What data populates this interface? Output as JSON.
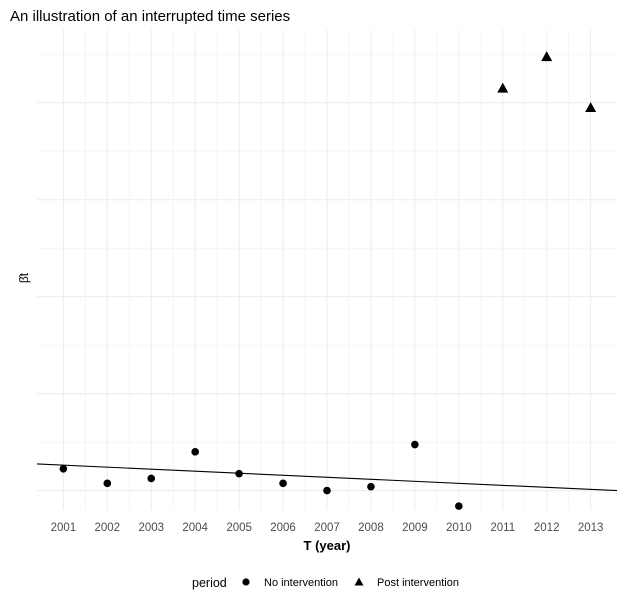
{
  "chart_data": {
    "type": "scatter",
    "title": "An illustration of an interrupted time series",
    "xlabel": "T (year)",
    "ylabel": "β̂t",
    "x_ticks": [
      2001,
      2002,
      2003,
      2004,
      2005,
      2006,
      2007,
      2008,
      2009,
      2010,
      2011,
      2012,
      2013
    ],
    "xlim": [
      2000.4,
      2013.6
    ],
    "ylim": [
      0.1,
      10
    ],
    "y_tick_labels_shown": false,
    "grid": true,
    "legend": {
      "title": "period",
      "position": "bottom",
      "entries": [
        {
          "label": "No intervention",
          "shape": "circle"
        },
        {
          "label": "Post intervention",
          "shape": "triangle"
        }
      ]
    },
    "series": [
      {
        "name": "No intervention",
        "shape": "circle",
        "color": "#000000",
        "points": [
          {
            "x": 2001,
            "y": 0.95
          },
          {
            "x": 2002,
            "y": 0.65
          },
          {
            "x": 2003,
            "y": 0.75
          },
          {
            "x": 2004,
            "y": 1.3
          },
          {
            "x": 2005,
            "y": 0.85
          },
          {
            "x": 2006,
            "y": 0.65
          },
          {
            "x": 2007,
            "y": 0.5
          },
          {
            "x": 2008,
            "y": 0.58
          },
          {
            "x": 2009,
            "y": 1.45
          },
          {
            "x": 2010,
            "y": 0.18
          }
        ]
      },
      {
        "name": "Post intervention",
        "shape": "triangle",
        "color": "#000000",
        "points": [
          {
            "x": 2011,
            "y": 8.8
          },
          {
            "x": 2012,
            "y": 9.45
          },
          {
            "x": 2013,
            "y": 8.4
          }
        ]
      }
    ],
    "trend_line": {
      "x": [
        2000.4,
        2013.6
      ],
      "y": [
        1.05,
        0.5
      ]
    }
  }
}
